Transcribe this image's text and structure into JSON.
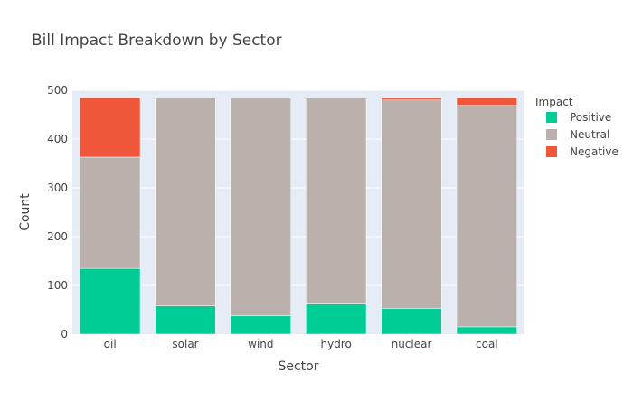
{
  "chart_data": {
    "type": "bar",
    "stacked": true,
    "title": "Bill Impact Breakdown by Sector",
    "xlabel": "Sector",
    "ylabel": "Count",
    "ylim": [
      0,
      500
    ],
    "yticks": [
      0,
      100,
      200,
      300,
      400,
      500
    ],
    "grid": true,
    "legend_title": "Impact",
    "legend_position": "top-right",
    "categories": [
      "oil",
      "solar",
      "wind",
      "hydro",
      "nuclear",
      "coal"
    ],
    "series": [
      {
        "name": "Positive",
        "color": "#00CC96",
        "values": [
          135,
          58,
          38,
          62,
          53,
          15
        ]
      },
      {
        "name": "Neutral",
        "color": "#BAB0AC",
        "values": [
          228,
          426,
          446,
          422,
          427,
          454
        ]
      },
      {
        "name": "Negative",
        "color": "#F0573A",
        "values": [
          122,
          0,
          0,
          0,
          5,
          16
        ]
      }
    ]
  }
}
